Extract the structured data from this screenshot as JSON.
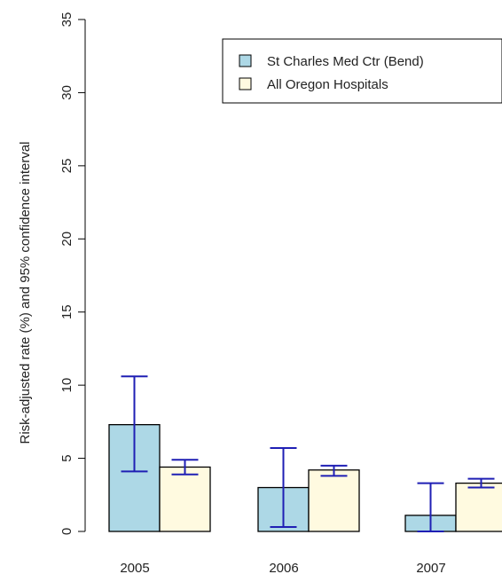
{
  "chart_data": {
    "type": "bar",
    "title": "",
    "xlabel": "",
    "ylabel": "Risk-adjusted rate (%) and 95% confidence interval",
    "ylim": [
      0,
      35
    ],
    "yticks": [
      0,
      5,
      10,
      15,
      20,
      25,
      30,
      35
    ],
    "grid": false,
    "legend_position": "top-right",
    "categories": [
      "2005",
      "2006",
      "2007"
    ],
    "series": [
      {
        "name": "St Charles Med Ctr (Bend)",
        "color": "#add8e6",
        "values": [
          7.3,
          3.0,
          1.1
        ],
        "ci_low": [
          4.1,
          0.3,
          0.0
        ],
        "ci_high": [
          10.6,
          5.7,
          3.3
        ]
      },
      {
        "name": "All Oregon Hospitals",
        "color": "#fffae0",
        "values": [
          4.4,
          4.2,
          3.3
        ],
        "ci_low": [
          3.9,
          3.8,
          3.0
        ],
        "ci_high": [
          4.9,
          4.5,
          3.6
        ]
      }
    ],
    "error_bar_color": "#1f1fb4"
  }
}
